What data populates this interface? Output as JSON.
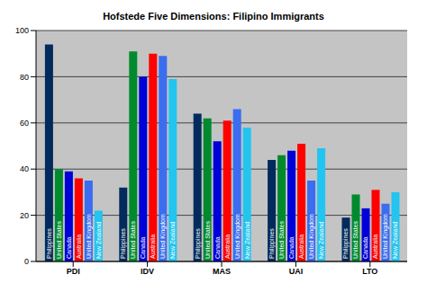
{
  "chart_data": {
    "type": "bar",
    "title": "Hofstede Five Dimensions: Filipino Immigrants",
    "categories": [
      "PDI",
      "IDV",
      "MAS",
      "UAI",
      "LTO"
    ],
    "series": [
      {
        "name": "Philippines",
        "color": "#002b5c",
        "values": [
          94,
          32,
          64,
          44,
          19
        ]
      },
      {
        "name": "United States",
        "color": "#008a2e",
        "values": [
          40,
          91,
          62,
          46,
          29
        ]
      },
      {
        "name": "Canada",
        "color": "#0000d8",
        "values": [
          39,
          80,
          52,
          48,
          23
        ]
      },
      {
        "name": "Australia",
        "color": "#ff0000",
        "values": [
          36,
          90,
          61,
          51,
          31
        ]
      },
      {
        "name": "United Kingdom",
        "color": "#3a6df0",
        "values": [
          35,
          89,
          66,
          35,
          25
        ]
      },
      {
        "name": "New Zealand",
        "color": "#22c4f0",
        "values": [
          22,
          79,
          58,
          49,
          30
        ]
      }
    ],
    "ylim": [
      0,
      100
    ],
    "yticks": [
      0,
      20,
      40,
      60,
      80,
      100
    ],
    "grid": true,
    "data_labels": false
  }
}
